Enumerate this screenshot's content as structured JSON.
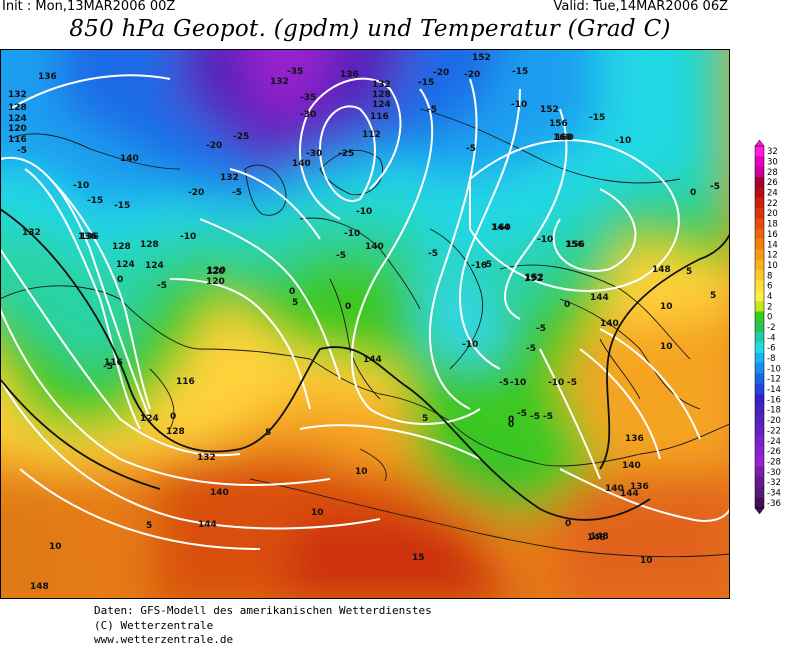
{
  "header": {
    "init": "Init : Mon,13MAR2006 00Z",
    "valid": "Valid: Tue,14MAR2006 06Z",
    "title": "850 hPa Geopot. (gpdm) und Temperatur (Grad C)"
  },
  "credits": [
    "Daten: GFS-Modell des amerikanischen Wetterdienstes",
    "(C) Wetterzentrale",
    "www.wetterzentrale.de"
  ],
  "colorbar": {
    "levels": [
      "32",
      "30",
      "28",
      "26",
      "24",
      "22",
      "20",
      "18",
      "16",
      "14",
      "12",
      "10",
      "8",
      "6",
      "4",
      "2",
      "0",
      "-2",
      "-4",
      "-6",
      "-8",
      "-10",
      "-12",
      "-14",
      "-16",
      "-18",
      "-20",
      "-22",
      "-24",
      "-26",
      "-28",
      "-30",
      "-32",
      "-34",
      "-36"
    ],
    "colors": [
      "#ff1ad9",
      "#e600bf",
      "#cc0099",
      "#a60033",
      "#b80d14",
      "#cc1f0d",
      "#d9320d",
      "#e64d0d",
      "#eb660d",
      "#f2800f",
      "#f5991a",
      "#f7b21f",
      "#fcc826",
      "#ffe033",
      "#ffee44",
      "#c8e619",
      "#33cc22",
      "#2bbf55",
      "#22ccaa",
      "#22d9dd",
      "#1ab3f0",
      "#1a8cf0",
      "#1a66e6",
      "#2244dd",
      "#3322cc",
      "#4422bb",
      "#5522bb",
      "#6622bb",
      "#7722cc",
      "#8822cc",
      "#9922cc",
      "#7a1fa6",
      "#661a8c",
      "#551a77",
      "#440f55"
    ]
  },
  "contour_labels": {
    "geopotential": [
      "136",
      "132",
      "128",
      "124",
      "120",
      "116",
      "140",
      "136",
      "132",
      "140",
      "132",
      "128",
      "124",
      "116",
      "112",
      "120",
      "124",
      "128",
      "132",
      "136",
      "140",
      "144",
      "148",
      "152",
      "156",
      "160",
      "160",
      "156",
      "152",
      "148",
      "144",
      "140",
      "136",
      "140",
      "144",
      "148",
      "152",
      "136",
      "132",
      "128",
      "124",
      "120",
      "116",
      "120",
      "116",
      "124",
      "128",
      "132",
      "144",
      "140",
      "136",
      "140",
      "144",
      "148",
      "152",
      "160",
      "156"
    ],
    "temperature": [
      "-5",
      "-10",
      "-15",
      "-5",
      "0",
      "-10",
      "-20",
      "-15",
      "-10",
      "-5",
      "-35",
      "-25",
      "-30",
      "-20",
      "-25",
      "-35",
      "-30",
      "-20",
      "-15",
      "-10",
      "-5",
      "-15",
      "-20",
      "-10",
      "-15",
      "-10",
      "-5",
      "0",
      "5",
      "10",
      "-5",
      "-10",
      "-10",
      "-5",
      "0",
      "5",
      "10",
      "15",
      "10",
      "10",
      "10",
      "5",
      "0",
      "-5",
      "-5",
      "0",
      "5",
      "0",
      "5",
      "10",
      "5",
      "0",
      "0",
      "-5",
      "-5",
      "-10",
      "-5",
      "-10",
      "-5",
      "-10",
      "-5",
      "-5",
      "0",
      "-5",
      "-5"
    ]
  },
  "map_palette": {
    "land_lines": "#1a1a1a",
    "contour": "#ffffff",
    "zero_isotherm": "#111111"
  }
}
